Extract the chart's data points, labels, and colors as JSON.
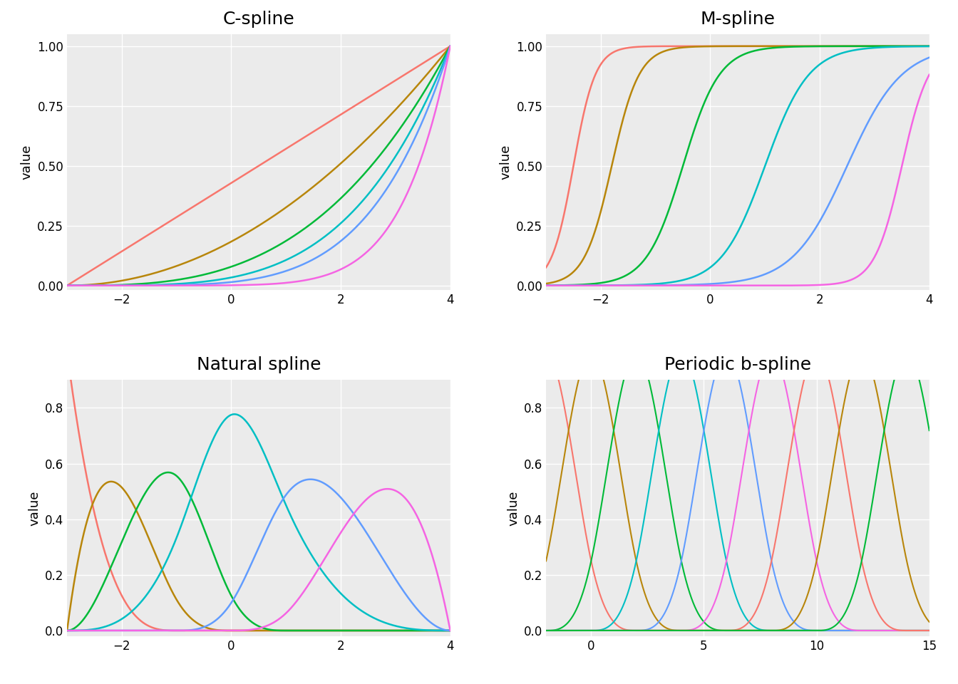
{
  "titles": [
    "C-spline",
    "M-spline",
    "Natural spline",
    "Periodic b-spline"
  ],
  "ylabel": "value",
  "colors": [
    "#F8766D",
    "#B8860B",
    "#00BA38",
    "#00BFC4",
    "#619CFF",
    "#F564E3"
  ],
  "bg_color": "#EBEBEB",
  "grid_color": "white",
  "title_fontsize": 18,
  "label_fontsize": 13,
  "tick_fontsize": 12
}
